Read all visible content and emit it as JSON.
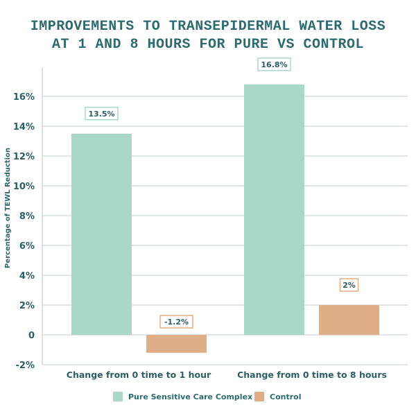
{
  "chart_data": {
    "type": "bar",
    "title_lines": [
      "IMPROVEMENTS TO TRANSEPIDERMAL WATER LOSS",
      "AT 1 AND 8 HOURS FOR PURE VS CONTROL"
    ],
    "xlabel": "",
    "ylabel": "Percentage of TEWL Reduction",
    "categories": [
      "Change from 0 time to 1 hour",
      "Change from 0 time to 8 hours"
    ],
    "series": [
      {
        "name": "Pure Sensitive Care Complex",
        "color": "#a8d8c8",
        "values": [
          13.5,
          16.8
        ],
        "labels": [
          "13.5%",
          "16.8%"
        ]
      },
      {
        "name": "Control",
        "color": "#dfae86",
        "values": [
          -1.2,
          2
        ],
        "labels": [
          "-1.2%",
          "2%"
        ]
      }
    ],
    "ylim": [
      -2,
      18
    ],
    "yticks": [
      -2,
      0,
      2,
      4,
      6,
      8,
      10,
      12,
      14,
      16
    ],
    "ytick_labels": [
      "-2%",
      "0",
      "2%",
      "4%",
      "6%",
      "8%",
      "10%",
      "12%",
      "14%",
      "16%"
    ],
    "grid": true,
    "legend": "bottom-center"
  }
}
